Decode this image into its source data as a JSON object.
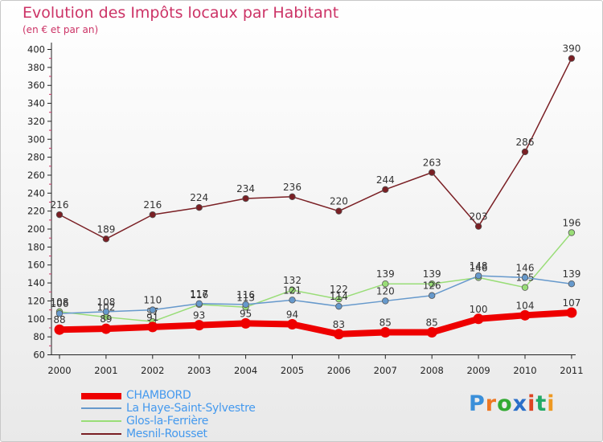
{
  "header": {
    "title": "Evolution des Impôts locaux par Habitant",
    "subtitle": "(en € et par an)"
  },
  "chart_data": {
    "type": "line",
    "title": "Evolution des Impôts locaux par Habitant",
    "subtitle": "(en € et par an)",
    "xlabel": "",
    "ylabel": "",
    "ylim": [
      60,
      400
    ],
    "ytick_step": 20,
    "grid": false,
    "legend_position": "bottom-left",
    "categories": [
      "2000",
      "2001",
      "2002",
      "2003",
      "2004",
      "2005",
      "2006",
      "2007",
      "2008",
      "2009",
      "2010",
      "2011"
    ],
    "yticks": [
      "60",
      "80",
      "100",
      "120",
      "140",
      "160",
      "180",
      "200",
      "220",
      "240",
      "260",
      "280",
      "300",
      "320",
      "340",
      "360",
      "380",
      "400"
    ],
    "series": [
      {
        "name": "Mesnil-Rousset",
        "color": "#7a1f24",
        "values": [
          216,
          189,
          216,
          224,
          234,
          236,
          220,
          244,
          263,
          203,
          286,
          390
        ]
      },
      {
        "name": "Glos-la-Ferrière",
        "color": "#99dd77",
        "values": [
          108,
          102,
          97,
          116,
          113,
          132,
          122,
          139,
          139,
          146,
          135,
          196
        ]
      },
      {
        "name": "La Haye-Saint-Sylvestre",
        "color": "#6699cc",
        "values": [
          106,
          108,
          110,
          117,
          116,
          121,
          114,
          120,
          126,
          148,
          146,
          139
        ]
      },
      {
        "name": "CHAMBORD",
        "color": "#ee0000",
        "values": [
          88,
          89,
          91,
          93,
          95,
          94,
          83,
          85,
          85,
          100,
          104,
          107
        ]
      }
    ],
    "data_labels": {
      "Mesnil-Rousset": [
        "216",
        "189",
        "216",
        "224",
        "234",
        "236",
        "220",
        "244",
        "263",
        "203",
        "286",
        "390"
      ],
      "Glos-la-Ferrière": [
        "108",
        "102",
        "97",
        "116",
        "113",
        "132",
        "122",
        "139",
        "139",
        "146",
        "135",
        "196"
      ],
      "La Haye-Saint-Sylvestre": [
        "106",
        "108",
        "110",
        "117",
        "116",
        "121",
        "114",
        "120",
        "126",
        "148",
        "146",
        "139"
      ],
      "CHAMBORD": [
        "88",
        "89",
        "91",
        "93",
        "95",
        "94",
        "83",
        "85",
        "85",
        "100",
        "104",
        "107"
      ]
    }
  },
  "legend": {
    "items": [
      "CHAMBORD",
      "La Haye-Saint-Sylvestre",
      "Glos-la-Ferrière",
      "Mesnil-Rousset"
    ]
  },
  "logo": {
    "text": "Proxiti",
    "letters": [
      "P",
      "r",
      "o",
      "x",
      "i",
      "t",
      "i"
    ],
    "colors": [
      "#3a8fd9",
      "#ee7722",
      "#33aa33",
      "#2a6fc9",
      "#dd4422",
      "#22aa66",
      "#ee9922"
    ]
  }
}
